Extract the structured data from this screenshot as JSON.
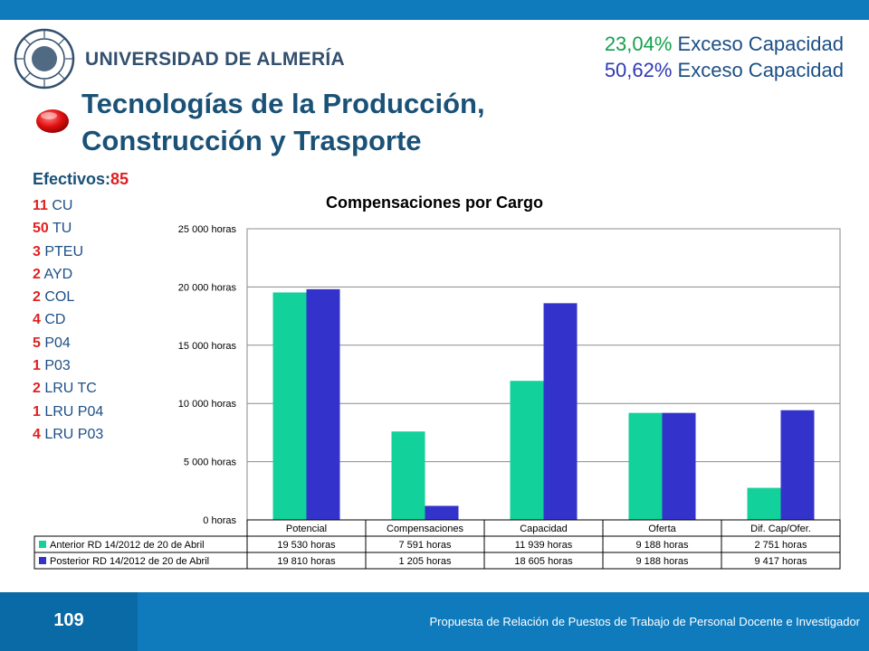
{
  "header": {
    "university": "UNIVERSIDAD DE ALMERÍA",
    "seal_text": "UNIVERSITAS ALMERIENSIS"
  },
  "excess": [
    {
      "pct": "23,04%",
      "label": " Exceso Capacidad",
      "color": "#13a24b"
    },
    {
      "pct": "50,62%",
      "label": " Exceso Capacidad",
      "color": "#2f39b3"
    }
  ],
  "title": {
    "line1": "Tecnologías de la Producción,",
    "line2": "Construcción y Trasporte"
  },
  "staff": {
    "label": "Efectivos:",
    "total": "85",
    "rows": [
      {
        "n": "11",
        "cat": " CU"
      },
      {
        "n": "50",
        "cat": " TU"
      },
      {
        "n": "3",
        "cat": " PTEU"
      },
      {
        "n": "2",
        "cat": " AYD"
      },
      {
        "n": "2",
        "cat": " COL"
      },
      {
        "n": "4",
        "cat": " CD"
      },
      {
        "n": "5",
        "cat": " P04"
      },
      {
        "n": "1",
        "cat": " P03"
      },
      {
        "n": "2",
        "cat": " LRU TC"
      },
      {
        "n": "1",
        "cat": " LRU P04"
      },
      {
        "n": "4",
        "cat": " LRU P03"
      }
    ]
  },
  "chart_data": {
    "type": "bar",
    "title": "Compensaciones por Cargo",
    "categories": [
      "Potencial",
      "Compensaciones",
      "Capacidad",
      "Oferta",
      "Dif. Cap/Ofer."
    ],
    "series": [
      {
        "name": "Anterior RD 14/2012 de 20 de Abril",
        "color": "#12d19a",
        "values": [
          19530,
          7591,
          11939,
          9188,
          2751
        ],
        "labels": [
          "19 530 horas",
          "7 591 horas",
          "11 939 horas",
          "9 188 horas",
          "2 751 horas"
        ]
      },
      {
        "name": "Posterior RD 14/2012 de 20 de Abril",
        "color": "#3333cc",
        "values": [
          19810,
          1205,
          18605,
          9188,
          9417
        ],
        "labels": [
          "19 810 horas",
          "1 205 horas",
          "18 605 horas",
          "9 188 horas",
          "9 417 horas"
        ]
      }
    ],
    "ylim": [
      0,
      25000
    ],
    "yticks": [
      0,
      5000,
      10000,
      15000,
      20000,
      25000
    ],
    "ytick_labels": [
      "0 horas",
      "5 000 horas",
      "10 000 horas",
      "15 000 horas",
      "20 000 horas",
      "25 000 horas"
    ],
    "grid": true,
    "legend": "data-table"
  },
  "footer": {
    "page": "109",
    "text": "Propuesta de Relación de Puestos de Trabajo de Personal Docente e Investigador"
  }
}
